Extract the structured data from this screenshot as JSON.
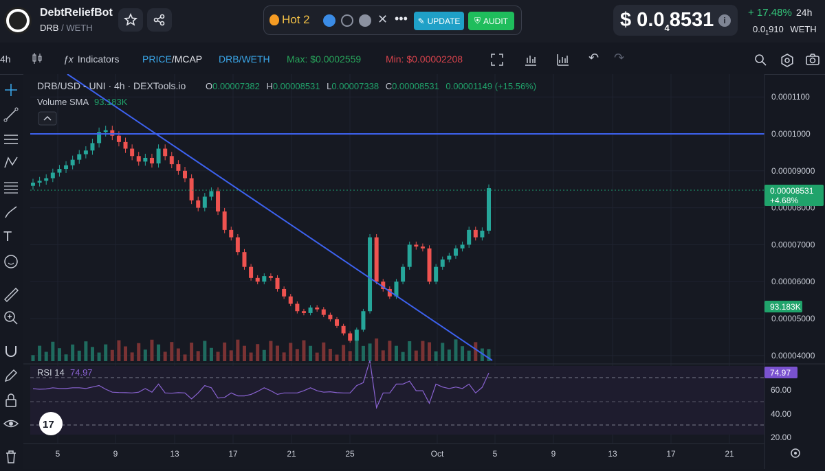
{
  "header": {
    "bot_name": "DebtReliefBot",
    "pair_base": "DRB",
    "pair_quote": "WETH",
    "hot_label": "Hot 2",
    "update_label": "UPDATE",
    "audit_label": "AUDIT",
    "price_prefix": "$ 0.0",
    "price_zeros": "4",
    "price_digits": "8531",
    "change": "+ 17.48%",
    "change_period": "24h",
    "eth_price": "0.0",
    "eth_price_zeros": "1",
    "eth_price_rest": "910",
    "eth_label": "WETH",
    "change_color": "#34c77b"
  },
  "toolbar": {
    "interval": "4h",
    "indicators": "Indicators",
    "price_label": "PRICE",
    "mcap_label": "MCAP",
    "pair": "DRB/WETH",
    "max": "Max: $0.0002559",
    "min": "Min: $0.00002208"
  },
  "legend": {
    "symbol": "DRB/USD - UNI · 4h · DEXTools.io",
    "o_label": "O",
    "o": "0.00007382",
    "h_label": "H",
    "h": "0.00008531",
    "l_label": "L",
    "l": "0.00007338",
    "c_label": "C",
    "c": "0.00008531",
    "delta": "0.00001149 (+15.56%)",
    "volume_label": "Volume SMA",
    "volume_value": "93.183K",
    "rsi_label": "RSI 14",
    "rsi_value": "74.97"
  },
  "chart_data": {
    "type": "candlestick",
    "price_axis_ticks": [
      "0.0001100",
      "0.0001000",
      "0.00009000",
      "0.00008000",
      "0.00007000",
      "0.00006000",
      "0.00005000",
      "0.00004000"
    ],
    "last_price_label": "0.00008531",
    "last_change_label": "+4.68%",
    "volume_label": "93.183K",
    "rsi_ticks": [
      "60.00",
      "40.00",
      "20.00"
    ],
    "rsi_last": "74.97",
    "x_ticks": [
      "5",
      "9",
      "13",
      "17",
      "21",
      "25",
      "Oct",
      "5",
      "9",
      "13",
      "17",
      "21"
    ],
    "resistance_line": 0.0001,
    "close_series": [
      8.68e-05,
      8.73e-05,
      8.8e-05,
      8.95e-05,
      9.05e-05,
      9.15e-05,
      9.3e-05,
      9.45e-05,
      9.55e-05,
      9.75e-05,
      0.0001005,
      0.000101,
      9.95e-05,
      9.78e-05,
      9.6e-05,
      9.4e-05,
      9.25e-05,
      9.35e-05,
      9.2e-05,
      9.6e-05,
      9.4e-05,
      9.18e-05,
      9e-05,
      8.8e-05,
      8.2e-05,
      8e-05,
      8.3e-05,
      8.45e-05,
      7.9e-05,
      7.4e-05,
      7.2e-05,
      6.8e-05,
      6.4e-05,
      6.1e-05,
      6e-05,
      6.15e-05,
      6.1e-05,
      5.8e-05,
      5.6e-05,
      5.4e-05,
      5.2e-05,
      5.15e-05,
      5.3e-05,
      5.25e-05,
      5.1e-05,
      4.98e-05,
      4.8e-05,
      4.6e-05,
      4.4e-05,
      4.7e-05,
      5.2e-05,
      7.2e-05,
      6e-05,
      5.8e-05,
      5.6e-05,
      6e-05,
      6.4e-05,
      7e-05,
      6.95e-05,
      6.9e-05,
      6e-05,
      6.4e-05,
      6.6e-05,
      6.7e-05,
      6.9e-05,
      7e-05,
      7.4e-05,
      7.2e-05,
      7.38e-05,
      8.53e-05
    ]
  },
  "icons": {
    "star": "star-icon",
    "share": "share-icon",
    "fullscreen": "fullscreen-icon",
    "undo": "undo-icon",
    "redo": "redo-icon",
    "settings": "gear-icon",
    "camera": "camera-icon"
  }
}
